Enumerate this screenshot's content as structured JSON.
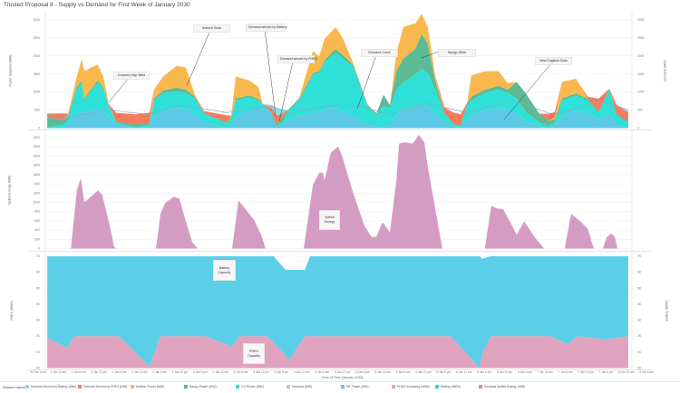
{
  "title": "Trusted Proposal 8 - Supply vs Demand for First Week of January 2030",
  "x_axis": {
    "title": "Hour of Time [January 2030]",
    "ticks": [
      "31 Dec 6 pm",
      "1 Jan 12 am",
      "1 Jan 6 am",
      "1 Jan 12 pm",
      "1 Jan 6 pm",
      "2 Jan 12 am",
      "2 Jan 6 am",
      "2 Jan 12 pm",
      "2 Jan 6 pm",
      "3 Jan 12 am",
      "3 Jan 6 am",
      "3 Jan 12 pm",
      "3 Jan 6 pm",
      "4 Jan 12 am",
      "4 Jan 6 am",
      "4 Jan 12 pm",
      "4 Jan 6 pm",
      "5 Jan 12 am",
      "5 Jan 6 am",
      "5 Jan 12 pm",
      "5 Jan 6 pm",
      "6 Jan 12 am",
      "6 Jan 6 am",
      "6 Jan 12 pm",
      "6 Jan 6 pm",
      "7 Jan 12 am",
      "7 Jan 6 am",
      "7 Jan 12 pm",
      "7 Jan 6 pm",
      "8 Jan 12 am",
      "8 Jan 6 am"
    ]
  },
  "legend": {
    "title": "Measure Names",
    "items": [
      {
        "label": "Demand Served by Battery (MW)",
        "color": "#7fe0ea"
      },
      {
        "label": "Demand Served by PHES (MW)",
        "color": "#f47b5c"
      },
      {
        "label": "Kidston Power (MW)",
        "color": "#f8b84e"
      },
      {
        "label": "Bango Power (MW)",
        "color": "#5cba94"
      },
      {
        "label": "CG Power (MW)",
        "color": "#2ee0d8"
      },
      {
        "label": "Demand (MW)",
        "color": "#e8b4cb"
      },
      {
        "label": "NE Power (MW)",
        "color": "#5bc8e6"
      },
      {
        "label": "PHES remaining (MWh)",
        "color": "#e3a6c2"
      },
      {
        "label": "Battery (MWh)",
        "color": "#3fc7e0"
      },
      {
        "label": "Residual Spilled Energy (MW)",
        "color": "#d08bb8"
      }
    ]
  },
  "annotations": {
    "coopers": "Coopers Gap Wind",
    "kidston": "Kidston Solar",
    "battery_served": "Demand served by Battery",
    "phes_served": "Demand served by PHES",
    "demand_curve": "Demand Curve",
    "bango": "Bango Wind",
    "ne_solar": "New England Solar",
    "spilled": "Spilled Energy",
    "battery_cap": "Battery Capacity",
    "phes_cap": "PHES Capacity"
  },
  "chart_data": [
    {
      "type": "area",
      "stacked": true,
      "ylabel": "Power Supplied (MW)",
      "ylabel_right": "Demand (MW)",
      "yticks": [
        "0",
        "500",
        "1000",
        "1500",
        "2000",
        "2500",
        "3000"
      ],
      "ylim": [
        0,
        3000
      ],
      "x_units": "hours since 31 Dec 6 pm",
      "x": [
        2.7,
        7.5,
        8.9,
        11.3,
        12.9,
        13.7,
        15.6,
        17.7,
        19.3,
        20.9,
        23.1,
        29.0,
        33.0,
        34.3,
        37.0,
        41.0,
        43.7,
        46.4,
        49.1,
        55.8,
        57.1,
        58.5,
        62.5,
        65.2,
        66.5,
        69.2,
        70.5,
        72.4,
        74.0,
        77.3,
        81.3,
        83.2,
        84.8,
        88.0,
        90.1,
        93.3,
        97.4,
        100.1,
        102.2,
        104.1,
        106.0,
        108.1,
        111.6,
        113.5,
        115.3,
        117.5,
        120.2,
        122.9,
        125.0,
        126.9,
        128.2,
        132.2,
        136.3,
        138.9,
        141.6,
        144.3,
        148.3,
        151.0,
        152.9,
        155.0,
        159.1,
        162.6,
        165.8,
        169.0,
        171.1,
        174.6
      ],
      "series": [
        {
          "name": "NE Power (MW)",
          "color": "#5bc8e6",
          "values": [
            0,
            0,
            100,
            360,
            430,
            460,
            480,
            510,
            460,
            310,
            100,
            0,
            50,
            310,
            460,
            560,
            510,
            360,
            150,
            0,
            50,
            310,
            480,
            560,
            540,
            410,
            50,
            100,
            230,
            360,
            410,
            460,
            510,
            560,
            460,
            310,
            100,
            50,
            50,
            100,
            360,
            510,
            610,
            640,
            610,
            410,
            150,
            50,
            0,
            200,
            360,
            510,
            560,
            510,
            410,
            200,
            50,
            0,
            50,
            360,
            480,
            410,
            250,
            410,
            100,
            0
          ]
        },
        {
          "name": "CG Power (MW)",
          "color": "#2ee0d8",
          "values": [
            25,
            100,
            150,
            710,
            840,
            310,
            540,
            770,
            610,
            310,
            50,
            25,
            50,
            460,
            510,
            460,
            460,
            460,
            250,
            130,
            200,
            460,
            380,
            200,
            100,
            0,
            0,
            80,
            230,
            410,
            1070,
            1070,
            1330,
            1530,
            1480,
            1380,
            510,
            310,
            560,
            460,
            710,
            770,
            870,
            1000,
            920,
            660,
            250,
            50,
            50,
            410,
            410,
            460,
            510,
            460,
            410,
            250,
            100,
            50,
            100,
            410,
            430,
            360,
            180,
            660,
            250,
            150
          ]
        },
        {
          "name": "Bango Power (MW)",
          "color": "#5cba94",
          "values": [
            280,
            130,
            100,
            50,
            50,
            50,
            50,
            50,
            50,
            25,
            25,
            80,
            50,
            50,
            80,
            100,
            100,
            50,
            25,
            25,
            50,
            50,
            50,
            50,
            25,
            0,
            50,
            130,
            50,
            50,
            50,
            50,
            50,
            100,
            100,
            50,
            50,
            50,
            310,
            80,
            510,
            660,
            710,
            970,
            820,
            250,
            25,
            25,
            25,
            80,
            100,
            100,
            100,
            100,
            460,
            510,
            250,
            150,
            100,
            50,
            50,
            50,
            25,
            25,
            50,
            50
          ]
        },
        {
          "name": "Kidston Power (MW)",
          "color": "#f8b84e",
          "values": [
            0,
            0,
            25,
            250,
            590,
            760,
            610,
            430,
            310,
            25,
            0,
            0,
            0,
            250,
            380,
            610,
            610,
            50,
            0,
            0,
            50,
            610,
            410,
            330,
            0,
            0,
            0,
            0,
            0,
            25,
            610,
            410,
            590,
            610,
            460,
            50,
            0,
            0,
            0,
            0,
            510,
            870,
            710,
            560,
            460,
            150,
            0,
            0,
            0,
            0,
            590,
            510,
            410,
            180,
            0,
            0,
            0,
            0,
            50,
            460,
            410,
            0,
            0,
            0,
            0,
            0
          ]
        },
        {
          "name": "Demand Served by PHES (MW)",
          "color": "#f47b5c",
          "values": [
            100,
            180,
            25,
            0,
            0,
            0,
            0,
            0,
            0,
            0,
            250,
            280,
            280,
            0,
            0,
            0,
            0,
            0,
            50,
            200,
            0,
            0,
            0,
            0,
            0,
            150,
            250,
            100,
            0,
            0,
            0,
            0,
            0,
            0,
            0,
            0,
            0,
            0,
            0,
            0,
            0,
            0,
            0,
            0,
            0,
            0,
            150,
            310,
            310,
            0,
            0,
            0,
            0,
            0,
            0,
            0,
            0,
            200,
            150,
            0,
            0,
            50,
            360,
            0,
            250,
            230
          ]
        },
        {
          "name": "Demand Served by Battery (MW)",
          "color": "#7fe0ea",
          "values": [
            0,
            0,
            0,
            0,
            0,
            0,
            0,
            0,
            0,
            0,
            0,
            0,
            0,
            0,
            0,
            0,
            0,
            0,
            0,
            0,
            0,
            0,
            0,
            0,
            0,
            80,
            200,
            100,
            0,
            0,
            0,
            0,
            0,
            0,
            0,
            0,
            0,
            0,
            0,
            0,
            0,
            0,
            0,
            0,
            0,
            0,
            0,
            0,
            0,
            0,
            0,
            0,
            0,
            0,
            0,
            0,
            0,
            0,
            0,
            0,
            0,
            0,
            0,
            0,
            0,
            50
          ]
        }
      ],
      "line": {
        "name": "Demand (MW)",
        "color": "#8aa7bd",
        "x": [
          2.7,
          8.9,
          20.1,
          32.5,
          42.4,
          55.8,
          69.2,
          74.6,
          88.0,
          94.7,
          104.1,
          114.8,
          126.9,
          140.3,
          152.4,
          167.1,
          174.6
        ],
        "values": [
          380,
          310,
          510,
          380,
          640,
          430,
          610,
          430,
          640,
          610,
          380,
          690,
          430,
          770,
          380,
          740,
          510
        ]
      }
    },
    {
      "type": "area",
      "ylabel": "Spilled Energy (MW)",
      "yticks": [
        "0",
        "200",
        "400",
        "600",
        "800",
        "1000",
        "1200",
        "1400",
        "1600",
        "1800",
        "2000",
        "2200",
        "2400"
      ],
      "ylim": [
        0,
        2400
      ],
      "series": [
        {
          "name": "Residual Spilled Energy (MW)",
          "color": "#d49cc2",
          "x": [
            9.7,
            11.5,
            12.6,
            13.7,
            17.7,
            19.0,
            20.9,
            22.5,
            23.3,
            34.9,
            36.2,
            37.6,
            40.2,
            41.8,
            43.7,
            45.6,
            47.2,
            57.4,
            59.3,
            63.8,
            66.0,
            67.3,
            78.6,
            81.3,
            83.2,
            84.2,
            84.8,
            86.6,
            88.8,
            90.1,
            93.3,
            96.6,
            98.7,
            100.1,
            101.9,
            104.1,
            106.0,
            106.8,
            108.6,
            110.8,
            112.7,
            114.3,
            115.3,
            119.6,
            132.2,
            134.1,
            135.7,
            137.6,
            140.3,
            141.6,
            143.8,
            147.0,
            149.7,
            155.8,
            157.7,
            160.4,
            162.6,
            164.4,
            167.1,
            168.2,
            169.5,
            170.6,
            171.4
          ],
          "values": [
            0,
            1280,
            1520,
            1000,
            1260,
            1160,
            590,
            40,
            0,
            0,
            750,
            990,
            1120,
            1080,
            590,
            140,
            0,
            0,
            1040,
            630,
            300,
            0,
            0,
            1380,
            1640,
            1640,
            1480,
            2070,
            2210,
            1970,
            1180,
            490,
            240,
            260,
            570,
            350,
            1480,
            2270,
            2300,
            2270,
            2460,
            2300,
            1770,
            0,
            0,
            930,
            870,
            850,
            490,
            300,
            590,
            240,
            0,
            0,
            750,
            590,
            430,
            0,
            0,
            240,
            330,
            260,
            0
          ]
        }
      ]
    },
    {
      "type": "area",
      "stacked": true,
      "ylabel": "PHES (MWh)",
      "ylabel_right": "Battery (MWh)",
      "yticks": [
        "0K",
        "1K",
        "2K",
        "3K",
        "4K",
        "5K",
        "6K",
        "7K"
      ],
      "ylim": [
        0,
        7
      ],
      "x": [
        2.7,
        8.6,
        10.7,
        23.9,
        33.0,
        36.2,
        49.4,
        57.4,
        59.5,
        67.6,
        69.7,
        73.2,
        74.3,
        78.9,
        80.5,
        122.1,
        129.8,
        130.6,
        131.4,
        133.9,
        134.4,
        151.3,
        156.7,
        159.6,
        167.9,
        174.6
      ],
      "series": [
        {
          "name": "PHES remaining (MWh)",
          "color": "#dfa3bd",
          "values": [
            1.9,
            1.25,
            2.0,
            2.0,
            0.1,
            2.0,
            2.0,
            1.35,
            2.0,
            2.0,
            1.6,
            0.8,
            0.5,
            2.0,
            2.0,
            2.0,
            0.2,
            0,
            0.9,
            2.0,
            2.0,
            2.0,
            1.5,
            2.0,
            1.8,
            2.0
          ]
        },
        {
          "name": "Battery (MWh)",
          "color": "#5bcfe8",
          "values": [
            5.1,
            5.75,
            5.0,
            5.0,
            6.9,
            5.0,
            5.0,
            5.65,
            5.0,
            5.0,
            5.4,
            5.35,
            5.65,
            4.15,
            5.0,
            5.0,
            6.8,
            7.0,
            5.95,
            5.0,
            5.0,
            5.0,
            5.5,
            5.0,
            5.2,
            5.0
          ]
        }
      ]
    }
  ]
}
